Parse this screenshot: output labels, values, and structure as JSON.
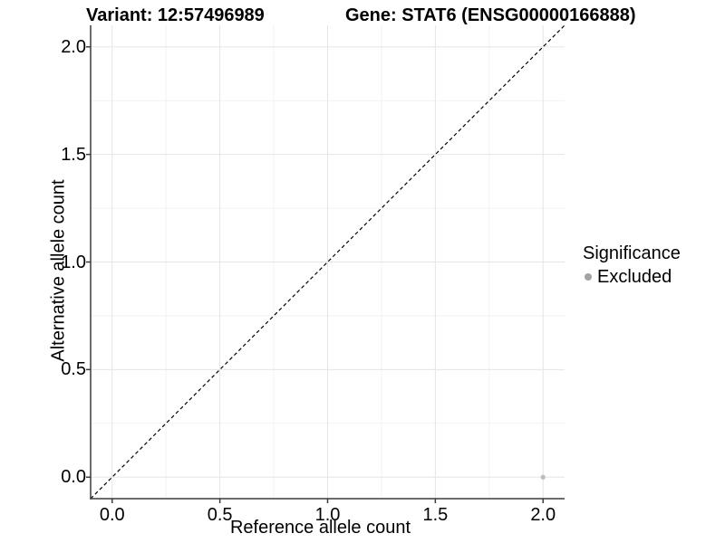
{
  "header": {
    "variant_title": "Variant: 12:57496989",
    "gene_title": "Gene: STAT6 (ENSG00000166888)"
  },
  "legend": {
    "title": "Significance",
    "items": [
      {
        "label": "Excluded",
        "color": "#a3a3a3"
      }
    ]
  },
  "chart_data": {
    "type": "scatter",
    "title_left": "Variant: 12:57496989",
    "title_right": "Gene: STAT6 (ENSG00000166888)",
    "xlabel": "Reference allele count",
    "ylabel": "Alternative allele count",
    "xlim": [
      -0.1,
      2.1
    ],
    "ylim": [
      -0.1,
      2.1
    ],
    "xticks": [
      0.0,
      0.5,
      1.0,
      1.5,
      2.0
    ],
    "yticks": [
      0.0,
      0.5,
      1.0,
      1.5,
      2.0
    ],
    "minor_ticks": [
      0.25,
      0.75,
      1.25,
      1.75
    ],
    "tick_decimals": 1,
    "grid": true,
    "legend_position": "right",
    "series": [
      {
        "name": "Excluded",
        "color": "#bdbdbd",
        "points": [
          {
            "x": 2.0,
            "y": 0.0
          }
        ]
      }
    ],
    "reference_line": {
      "type": "identity y=x",
      "style": "dashed",
      "color": "#000000"
    }
  },
  "colors": {
    "background": "#ffffff",
    "axis_line": "#3c3c3c",
    "grid_major": "#e5e5e5",
    "grid_minor": "#f2f2f2",
    "text": "#000000"
  }
}
